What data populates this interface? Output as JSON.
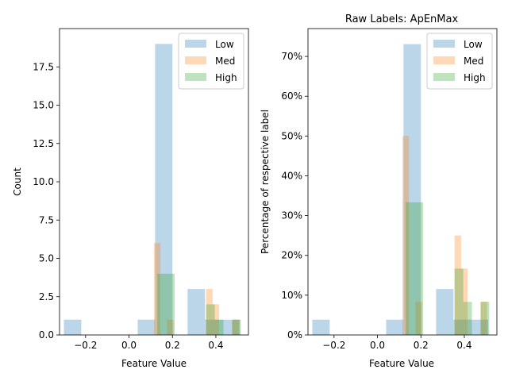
{
  "chart_data": [
    {
      "type": "bar",
      "subtype": "overlaid-histogram",
      "title": "",
      "xlabel": "Feature Value",
      "ylabel": "Count",
      "xlim": [
        -0.32,
        0.55
      ],
      "ylim": [
        0,
        20
      ],
      "x_ticks": [
        -0.2,
        0.0,
        0.2,
        0.4
      ],
      "x_tick_labels": [
        "−0.2",
        "0.0",
        "0.2",
        "0.4"
      ],
      "y_ticks": [
        0,
        2.5,
        5,
        7.5,
        10,
        12.5,
        15,
        17.5
      ],
      "y_tick_labels": [
        "0.0",
        "2.5",
        "5.0",
        "7.5",
        "10.0",
        "12.5",
        "15.0",
        "17.5"
      ],
      "legend_position": "top-right",
      "series": [
        {
          "name": "Low",
          "color": "#1f77b4",
          "alpha": 0.3,
          "bins": [
            [
              -0.3,
              -0.22,
              1
            ],
            [
              0.04,
              0.12,
              1
            ],
            [
              0.12,
              0.2,
              19
            ],
            [
              0.27,
              0.35,
              3
            ],
            [
              0.35,
              0.43,
              1
            ],
            [
              0.43,
              0.51,
              1
            ]
          ]
        },
        {
          "name": "Med",
          "color": "#ff7f0e",
          "alpha": 0.3,
          "bins": [
            [
              0.115,
              0.145,
              6
            ],
            [
              0.175,
              0.205,
              1
            ],
            [
              0.355,
              0.385,
              3
            ],
            [
              0.385,
              0.415,
              2
            ],
            [
              0.475,
              0.505,
              1
            ]
          ]
        },
        {
          "name": "High",
          "color": "#2ca02c",
          "alpha": 0.3,
          "bins": [
            [
              0.13,
              0.17,
              4
            ],
            [
              0.17,
              0.21,
              4
            ],
            [
              0.355,
              0.395,
              2
            ],
            [
              0.395,
              0.435,
              1
            ],
            [
              0.475,
              0.515,
              1
            ]
          ]
        }
      ]
    },
    {
      "type": "bar",
      "subtype": "overlaid-histogram",
      "title": "Raw Labels: ApEnMax",
      "xlabel": "Feature Value",
      "ylabel": "Percentage of respective label",
      "xlim": [
        -0.32,
        0.55
      ],
      "ylim": [
        0,
        0.77
      ],
      "x_ticks": [
        -0.2,
        0.0,
        0.2,
        0.4
      ],
      "x_tick_labels": [
        "−0.2",
        "0.0",
        "0.2",
        "0.4"
      ],
      "y_ticks": [
        0,
        0.1,
        0.2,
        0.3,
        0.4,
        0.5,
        0.6,
        0.7
      ],
      "y_tick_labels": [
        "0%",
        "10%",
        "20%",
        "30%",
        "40%",
        "50%",
        "60%",
        "70%"
      ],
      "legend_position": "top-right",
      "series": [
        {
          "name": "Low",
          "color": "#1f77b4",
          "alpha": 0.3,
          "bins": [
            [
              -0.3,
              -0.22,
              0.0385
            ],
            [
              0.04,
              0.12,
              0.0385
            ],
            [
              0.12,
              0.2,
              0.7308
            ],
            [
              0.27,
              0.35,
              0.1154
            ],
            [
              0.35,
              0.43,
              0.0385
            ],
            [
              0.43,
              0.51,
              0.0385
            ]
          ]
        },
        {
          "name": "Med",
          "color": "#ff7f0e",
          "alpha": 0.3,
          "bins": [
            [
              0.115,
              0.145,
              0.5
            ],
            [
              0.175,
              0.205,
              0.0833
            ],
            [
              0.355,
              0.385,
              0.25
            ],
            [
              0.385,
              0.415,
              0.1667
            ],
            [
              0.475,
              0.505,
              0.0833
            ]
          ]
        },
        {
          "name": "High",
          "color": "#2ca02c",
          "alpha": 0.3,
          "bins": [
            [
              0.13,
              0.17,
              0.3333
            ],
            [
              0.17,
              0.21,
              0.3333
            ],
            [
              0.355,
              0.395,
              0.1667
            ],
            [
              0.395,
              0.435,
              0.0833
            ],
            [
              0.475,
              0.515,
              0.0833
            ]
          ]
        }
      ]
    }
  ]
}
